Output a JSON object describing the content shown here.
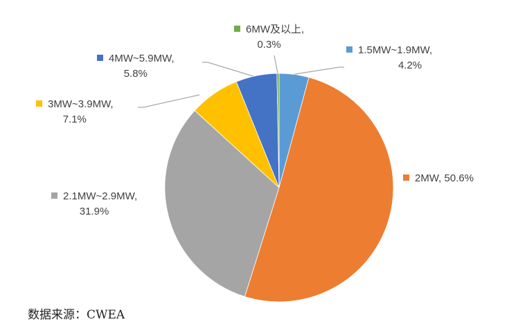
{
  "chart_data": {
    "type": "pie",
    "start_angle": "top",
    "direction": "clockwise",
    "slices": [
      {
        "label": "1.5MW~1.9MW,",
        "value": 4.2,
        "value_label": "4.2%",
        "color": "#5B9BD5"
      },
      {
        "label": "2MW,",
        "value": 50.6,
        "value_label": "50.6%",
        "color": "#ED7D31"
      },
      {
        "label": "2.1MW~2.9MW,",
        "value": 31.9,
        "value_label": "31.9%",
        "color": "#A5A5A5"
      },
      {
        "label": "3MW~3.9MW,",
        "value": 7.1,
        "value_label": "7.1%",
        "color": "#FFC000"
      },
      {
        "label": "4MW~5.9MW,",
        "value": 5.8,
        "value_label": "5.8%",
        "color": "#4472C4"
      },
      {
        "label": "6MW及以上,",
        "value": 0.3,
        "value_label": "0.3%",
        "color": "#70AD47"
      }
    ]
  },
  "source": "数据来源：CWEA"
}
